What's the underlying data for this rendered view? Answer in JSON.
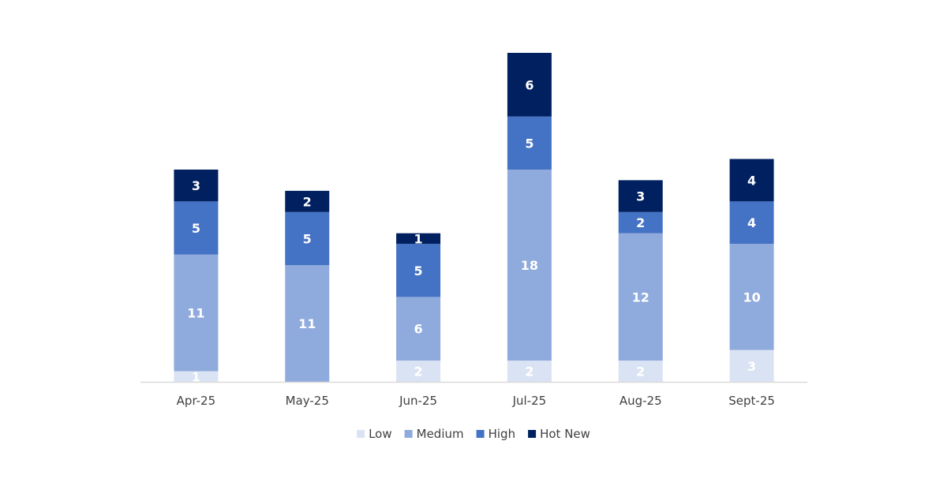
{
  "chart_data": {
    "type": "bar",
    "stacked": true,
    "categories": [
      "Apr-25",
      "May-25",
      "Jun-25",
      "Jul-25",
      "Aug-25",
      "Sept-25"
    ],
    "series": [
      {
        "name": "Low",
        "color": "#dae3f3",
        "values": [
          1,
          0,
          2,
          2,
          2,
          3
        ]
      },
      {
        "name": "Medium",
        "color": "#8faadc",
        "values": [
          11,
          11,
          6,
          18,
          12,
          10
        ]
      },
      {
        "name": "High",
        "color": "#4472c4",
        "values": [
          5,
          5,
          5,
          5,
          2,
          4
        ]
      },
      {
        "name": "Hot New",
        "color": "#002060",
        "values": [
          3,
          2,
          1,
          6,
          3,
          4
        ]
      }
    ],
    "data_labels": [
      [
        "1",
        "",
        "2",
        "2",
        "2",
        "3"
      ],
      [
        "11",
        "11",
        "6",
        "18",
        "12",
        "10"
      ],
      [
        "5",
        "5",
        "5",
        "5",
        "2",
        "4"
      ],
      [
        "3",
        "2",
        "1",
        "6",
        "3",
        "4"
      ]
    ],
    "ylim": [
      0,
      31
    ],
    "grid": false,
    "legend_position": "bottom",
    "axis_color": "#d9d9d9"
  }
}
